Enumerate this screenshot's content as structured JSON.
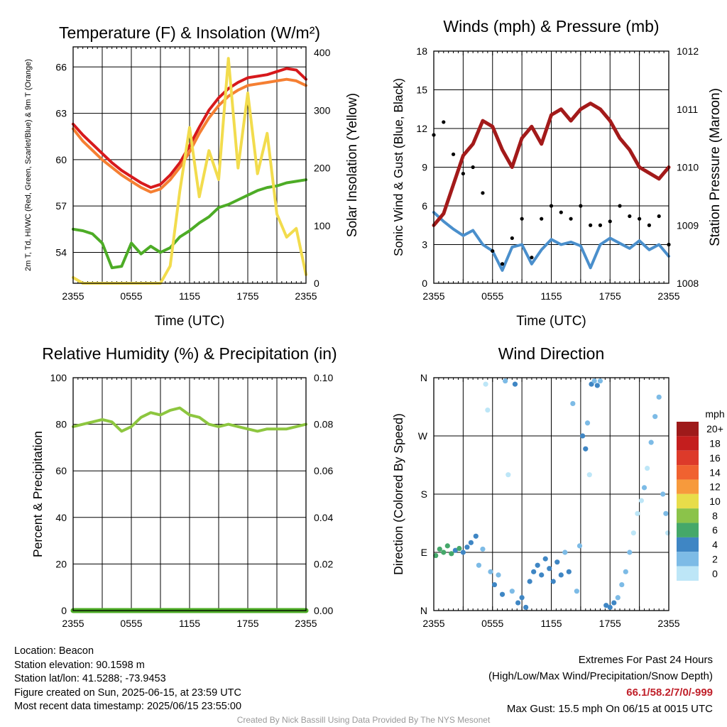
{
  "chart_data": [
    {
      "id": "temp",
      "type": "line",
      "title": "Temperature (F) & Insolation (W/m²)",
      "xlabel": "Time (UTC)",
      "ylabel_left": "2m T, Td, HI/WC (Red, Green, Scarlet/Blue) & 9m T (Orange)",
      "ylabel_right": "Solar Insolation (Yellow)",
      "x_ticks": [
        "2355",
        "0555",
        "1155",
        "1755",
        "2355"
      ],
      "ylim_left": [
        52.0,
        67.3
      ],
      "ylim_right": [
        0,
        410
      ],
      "yticks_left": [
        54,
        57,
        60,
        63,
        66
      ],
      "yticks_right": [
        0,
        100,
        200,
        300,
        400
      ],
      "x": [
        0,
        1,
        2,
        3,
        4,
        5,
        6,
        7,
        8,
        9,
        10,
        11,
        12,
        13,
        14,
        15,
        16,
        17,
        18,
        19,
        20,
        21,
        22,
        23,
        24
      ],
      "series": [
        {
          "color": "#d7191c",
          "axis": "left",
          "values": [
            62.3,
            61.6,
            61.0,
            60.4,
            59.8,
            59.3,
            58.9,
            58.5,
            58.2,
            58.4,
            59.0,
            59.8,
            60.9,
            62.1,
            63.2,
            64.0,
            64.6,
            65.0,
            65.3,
            65.4,
            65.5,
            65.7,
            65.9,
            65.8,
            65.2
          ]
        },
        {
          "color": "#f57f32",
          "axis": "left",
          "values": [
            62.0,
            61.2,
            60.6,
            60.0,
            59.5,
            59.0,
            58.6,
            58.2,
            57.9,
            58.1,
            58.7,
            59.5,
            60.5,
            61.7,
            62.7,
            63.5,
            64.1,
            64.5,
            64.8,
            64.9,
            65.0,
            65.1,
            65.2,
            65.1,
            64.8
          ]
        },
        {
          "color": "#4dac26",
          "axis": "left",
          "values": [
            55.5,
            55.4,
            55.2,
            54.6,
            53.0,
            53.1,
            54.6,
            53.9,
            54.4,
            54.0,
            54.3,
            55.0,
            55.4,
            55.9,
            56.3,
            56.9,
            57.1,
            57.4,
            57.7,
            58.0,
            58.2,
            58.3,
            58.5,
            58.6,
            58.7
          ]
        },
        {
          "color": "#f2dc4d",
          "axis": "right",
          "values": [
            10,
            0,
            0,
            0,
            0,
            0,
            0,
            0,
            0,
            0,
            30,
            160,
            270,
            150,
            230,
            180,
            390,
            200,
            330,
            190,
            260,
            120,
            80,
            95,
            15
          ]
        }
      ]
    },
    {
      "id": "wind",
      "type": "line",
      "title": "Winds (mph) & Pressure (mb)",
      "xlabel": "Time (UTC)",
      "ylabel_left": "Sonic Wind & Gust (Blue, Black)",
      "ylabel_right": "Station Pressure (Maroon)",
      "x_ticks": [
        "2355",
        "0555",
        "1155",
        "1755",
        "2355"
      ],
      "ylim_left": [
        0,
        18
      ],
      "ylim_right": [
        1008,
        1012
      ],
      "yticks_left": [
        0,
        3,
        6,
        9,
        12,
        15,
        18
      ],
      "yticks_right": [
        1008,
        1009,
        1010,
        1011,
        1012
      ],
      "x": [
        0,
        1,
        2,
        3,
        4,
        5,
        6,
        7,
        8,
        9,
        10,
        11,
        12,
        13,
        14,
        15,
        16,
        17,
        18,
        19,
        20,
        21,
        22,
        23,
        24
      ],
      "series": [
        {
          "name": "wind",
          "color": "#4a8fcc",
          "axis": "left",
          "values": [
            5.5,
            4.8,
            4.2,
            3.7,
            4.1,
            3.0,
            2.5,
            1.0,
            2.8,
            3.0,
            1.5,
            2.6,
            3.4,
            3.0,
            3.2,
            2.9,
            1.2,
            3.0,
            3.5,
            3.1,
            2.7,
            3.3,
            2.6,
            3.0,
            2.1
          ]
        },
        {
          "name": "gust",
          "color": "#000000",
          "axis": "left",
          "style": "dots",
          "values": [
            11.5,
            12.5,
            10.0,
            8.5,
            9.0,
            7.0,
            2.5,
            1.5,
            3.5,
            5.0,
            2.0,
            5.0,
            6.0,
            5.5,
            5.0,
            6.0,
            4.5,
            4.5,
            4.8,
            6.0,
            5.2,
            5.0,
            4.5,
            5.2,
            3.0
          ]
        },
        {
          "name": "pressure",
          "color": "#a31a1a",
          "axis": "right",
          "values": [
            1009.0,
            1009.2,
            1009.7,
            1010.2,
            1010.4,
            1010.8,
            1010.7,
            1010.3,
            1010.0,
            1010.5,
            1010.7,
            1010.4,
            1010.9,
            1011.0,
            1010.8,
            1011.0,
            1011.1,
            1011.0,
            1010.8,
            1010.5,
            1010.3,
            1010.0,
            1009.9,
            1009.8,
            1010.0
          ]
        }
      ]
    },
    {
      "id": "rh",
      "type": "line",
      "title": "Relative Humidity (%) & Precipitation (in)",
      "ylabel_left": "Percent & Precipitation",
      "x_ticks": [
        "2355",
        "0555",
        "1155",
        "1755",
        "2355"
      ],
      "ylim_left": [
        0,
        100
      ],
      "ylim_right": [
        0,
        0.1
      ],
      "yticks_left": [
        0,
        20,
        40,
        60,
        80,
        100
      ],
      "yticks_right_labels": [
        "0.00",
        "0.02",
        "0.04",
        "0.06",
        "0.08",
        "0.10"
      ],
      "x": [
        0,
        1,
        2,
        3,
        4,
        5,
        6,
        7,
        8,
        9,
        10,
        11,
        12,
        13,
        14,
        15,
        16,
        17,
        18,
        19,
        20,
        21,
        22,
        23,
        24
      ],
      "series": [
        {
          "name": "rh",
          "color": "#8dc63f",
          "axis": "left",
          "values": [
            79,
            80,
            81,
            82,
            81,
            77,
            79,
            83,
            85,
            84,
            86,
            87,
            84,
            83,
            80,
            79,
            80,
            79,
            78,
            77,
            78,
            78,
            78,
            79,
            80
          ]
        },
        {
          "name": "precip",
          "color": "#4dac26",
          "axis": "right",
          "values": [
            0,
            0,
            0,
            0,
            0,
            0,
            0,
            0,
            0,
            0,
            0,
            0,
            0,
            0,
            0,
            0,
            0,
            0,
            0,
            0,
            0,
            0,
            0,
            0,
            0
          ]
        }
      ]
    },
    {
      "id": "wdir",
      "type": "scatter",
      "title": "Wind Direction",
      "ylabel_left": "Direction (Colored By Speed)",
      "x_ticks": [
        "2355",
        "0555",
        "1155",
        "1755",
        "2355"
      ],
      "ylim_left": [
        0,
        360
      ],
      "yticks_left": [
        0,
        90,
        180,
        270,
        360
      ],
      "ytick_labels": [
        "N",
        "E",
        "S",
        "W",
        "N"
      ],
      "colorbar": {
        "title": "mph",
        "labels": [
          "20+",
          "18",
          "16",
          "14",
          "12",
          "10",
          "8",
          "6",
          "4",
          "2",
          "0"
        ],
        "colors": [
          "#9e1a1a",
          "#c41e1e",
          "#dd3a2a",
          "#f06230",
          "#f79a3c",
          "#e8dd4a",
          "#8bc34a",
          "#45a86a",
          "#3f86c4",
          "#7dbbe6",
          "#bde6f7"
        ]
      },
      "points": [
        {
          "x": 0.2,
          "y": 85,
          "s": 6
        },
        {
          "x": 0.6,
          "y": 95,
          "s": 5
        },
        {
          "x": 1.0,
          "y": 90,
          "s": 6
        },
        {
          "x": 1.4,
          "y": 100,
          "s": 5
        },
        {
          "x": 1.8,
          "y": 88,
          "s": 6
        },
        {
          "x": 2.2,
          "y": 93,
          "s": 4
        },
        {
          "x": 2.6,
          "y": 96,
          "s": 5
        },
        {
          "x": 3.0,
          "y": 90,
          "s": 4
        },
        {
          "x": 3.4,
          "y": 98,
          "s": 4
        },
        {
          "x": 3.8,
          "y": 105,
          "s": 3
        },
        {
          "x": 4.3,
          "y": 115,
          "s": 3
        },
        {
          "x": 4.6,
          "y": 70,
          "s": 1
        },
        {
          "x": 5.0,
          "y": 95,
          "s": 2
        },
        {
          "x": 5.3,
          "y": 350,
          "s": 0
        },
        {
          "x": 5.5,
          "y": 310,
          "s": 0
        },
        {
          "x": 5.8,
          "y": 60,
          "s": 2
        },
        {
          "x": 6.2,
          "y": 40,
          "s": 3
        },
        {
          "x": 6.6,
          "y": 55,
          "s": 2
        },
        {
          "x": 7.0,
          "y": 25,
          "s": 3
        },
        {
          "x": 7.3,
          "y": 355,
          "s": 2
        },
        {
          "x": 7.6,
          "y": 210,
          "s": 0
        },
        {
          "x": 8.0,
          "y": 30,
          "s": 1
        },
        {
          "x": 8.3,
          "y": 350,
          "s": 3
        },
        {
          "x": 8.6,
          "y": 12,
          "s": 3
        },
        {
          "x": 9.0,
          "y": 20,
          "s": 4
        },
        {
          "x": 9.4,
          "y": 5,
          "s": 4
        },
        {
          "x": 9.8,
          "y": 45,
          "s": 3
        },
        {
          "x": 10.2,
          "y": 60,
          "s": 4
        },
        {
          "x": 10.6,
          "y": 70,
          "s": 4
        },
        {
          "x": 11.0,
          "y": 55,
          "s": 3
        },
        {
          "x": 11.4,
          "y": 80,
          "s": 4
        },
        {
          "x": 11.8,
          "y": 65,
          "s": 3
        },
        {
          "x": 12.2,
          "y": 45,
          "s": 4
        },
        {
          "x": 12.6,
          "y": 75,
          "s": 3
        },
        {
          "x": 13.0,
          "y": 55,
          "s": 3
        },
        {
          "x": 13.4,
          "y": 90,
          "s": 2
        },
        {
          "x": 13.8,
          "y": 60,
          "s": 3
        },
        {
          "x": 14.2,
          "y": 320,
          "s": 1
        },
        {
          "x": 14.6,
          "y": 30,
          "s": 2
        },
        {
          "x": 14.9,
          "y": 100,
          "s": 1
        },
        {
          "x": 15.2,
          "y": 270,
          "s": 3
        },
        {
          "x": 15.5,
          "y": 250,
          "s": 3
        },
        {
          "x": 15.7,
          "y": 290,
          "s": 2
        },
        {
          "x": 15.9,
          "y": 210,
          "s": 0
        },
        {
          "x": 16.1,
          "y": 350,
          "s": 3
        },
        {
          "x": 16.4,
          "y": 355,
          "s": 2
        },
        {
          "x": 16.7,
          "y": 348,
          "s": 3
        },
        {
          "x": 17.0,
          "y": 355,
          "s": 2
        },
        {
          "x": 17.6,
          "y": 8,
          "s": 3
        },
        {
          "x": 18.0,
          "y": 5,
          "s": 4
        },
        {
          "x": 18.4,
          "y": 12,
          "s": 3
        },
        {
          "x": 18.8,
          "y": 20,
          "s": 2
        },
        {
          "x": 19.2,
          "y": 40,
          "s": 2
        },
        {
          "x": 19.6,
          "y": 60,
          "s": 2
        },
        {
          "x": 20.0,
          "y": 90,
          "s": 1
        },
        {
          "x": 20.4,
          "y": 120,
          "s": 0
        },
        {
          "x": 20.8,
          "y": 150,
          "s": 0
        },
        {
          "x": 21.2,
          "y": 170,
          "s": 0
        },
        {
          "x": 21.5,
          "y": 190,
          "s": 1
        },
        {
          "x": 21.8,
          "y": 220,
          "s": 0
        },
        {
          "x": 22.2,
          "y": 260,
          "s": 1
        },
        {
          "x": 22.6,
          "y": 300,
          "s": 1
        },
        {
          "x": 23.0,
          "y": 330,
          "s": 2
        },
        {
          "x": 23.4,
          "y": 180,
          "s": 1
        },
        {
          "x": 23.7,
          "y": 150,
          "s": 1
        },
        {
          "x": 23.9,
          "y": 120,
          "s": 0
        }
      ]
    }
  ],
  "info": {
    "location": "Location: Beacon",
    "elevation": "Station elevation: 90.1598 m",
    "latlon": "Station lat/lon: 41.5288; -73.9453",
    "created": "Figure created on Sun, 2025-06-15, at 23:59 UTC",
    "recent": "Most recent data timestamp: 2025/06/15 23:55:00"
  },
  "extremes": {
    "title": "Extremes For Past 24 Hours",
    "subtitle": "(High/Low/Max Wind/Precipitation/Snow Depth)",
    "values": "66.1/58.2/7/0/-999",
    "gust": "Max Gust: 15.5 mph On 06/15 at 0015 UTC"
  },
  "credit": "Created By Nick Bassill Using Data Provided By The NYS Mesonet"
}
